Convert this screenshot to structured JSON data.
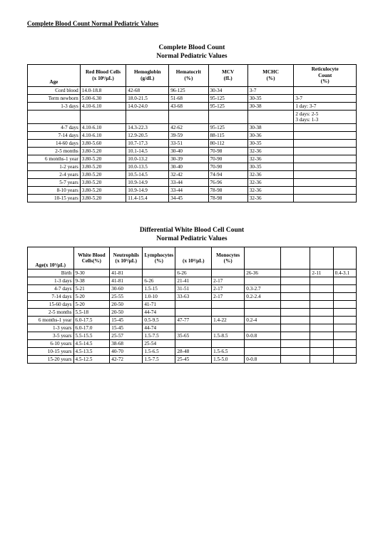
{
  "doc_title": "Complete Blood Count Normal Pediatric Values",
  "table1": {
    "title_line1": "Complete Blood Count",
    "title_line2": "Normal Pediatric Values",
    "headers": {
      "age": "Age",
      "rbc_l1": "Red Blood Cells",
      "rbc_l2": "(x 10⁶/µL)",
      "hgb_l1": "Hemoglobin",
      "hgb_l2": "(g/dL)",
      "hct_l1": "Hematocrit",
      "hct_l2": "(%)",
      "mcv_l1": "MCV",
      "mcv_l2": "(fL)",
      "mchc_l1": "MCHC",
      "mchc_l2": "(%)",
      "ret_l1": "Reticulocyte",
      "ret_l2": "Count",
      "ret_l3": "(%)"
    },
    "rows": [
      {
        "age": "Cord blood",
        "rbc": "14.0-18.8",
        "hgb": "42-68",
        "hct": "96-125",
        "mcv": "30-34",
        "mchc": "3-7",
        "ret": ""
      },
      {
        "age": "Term newborn",
        "rbc": "5.00-6.30",
        "hgb": "18.0-21.5",
        "hct": "51-68",
        "mcv": "95-125",
        "mchc": "30-35",
        "ret": "3-7"
      },
      {
        "age": "1-3 days",
        "rbc": "4.10-6.10",
        "hgb": "14.0-24.0",
        "hct": "43-68",
        "mcv": "95-125",
        "mchc": "30-38",
        "ret": "1 day: 3-7"
      },
      {
        "age": "",
        "rbc": "",
        "hgb": "",
        "hct": "",
        "mcv": "",
        "mchc": "",
        "ret": "2 days: 2-5\n3 days: 1-3"
      },
      {
        "age": "4-7 days",
        "rbc": "4.10-6.10",
        "hgb": "14.3-22.3",
        "hct": "42-62",
        "mcv": "95-125",
        "mchc": "30-38",
        "ret": ""
      },
      {
        "age": "7-14 days",
        "rbc": "4.10-6.10",
        "hgb": "12.9-20.5",
        "hct": "39-59",
        "mcv": "88-115",
        "mchc": "30-36",
        "ret": ""
      },
      {
        "age": "14-60 days",
        "rbc": "3.80-5.60",
        "hgb": "10.7-17.3",
        "hct": "33-51",
        "mcv": "80-112",
        "mchc": "30-35",
        "ret": ""
      },
      {
        "age": "2-5 months",
        "rbc": "3.80-5.20",
        "hgb": "10.1-14.5",
        "hct": "30-40",
        "mcv": "70-98",
        "mchc": "32-36",
        "ret": ""
      },
      {
        "age": "6 months-1 year",
        "rbc": "3.80-5.20",
        "hgb": "10.0-13.2",
        "hct": "30-39",
        "mcv": "70-90",
        "mchc": "32-36",
        "ret": ""
      },
      {
        "age": "1-2 years",
        "rbc": "3.80-5.20",
        "hgb": "10.0-13.5",
        "hct": "30-40",
        "mcv": "70-90",
        "mchc": "30-35",
        "ret": ""
      },
      {
        "age": "2-4 years",
        "rbc": "3.80-5.20",
        "hgb": "10.5-14.5",
        "hct": "32-42",
        "mcv": "74-94",
        "mchc": "32-36",
        "ret": ""
      },
      {
        "age": "5-7 years",
        "rbc": "3.80-5.20",
        "hgb": "10.9-14.9",
        "hct": "33-44",
        "mcv": "76-96",
        "mchc": "32-36",
        "ret": ""
      },
      {
        "age": "8-10 years",
        "rbc": "3.80-5.20",
        "hgb": "10.9-14.9",
        "hct": "33-44",
        "mcv": "78-98",
        "mchc": "32-36",
        "ret": ""
      },
      {
        "age": "10-15 years",
        "rbc": "3.80-5.20",
        "hgb": "11.4-15.4",
        "hct": "34-45",
        "mcv": "78-98",
        "mchc": "32-36",
        "ret": ""
      }
    ]
  },
  "table2": {
    "title_line1": "Differential White Blood Cell Count",
    "title_line2": "Normal Pediatric Values",
    "headers": {
      "age": "Age",
      "wbc_l1": "White Blood",
      "wbc_l2": "Cells",
      "wbc_l3": "(x 10³/µL)",
      "neut_l1": "Neutrophils",
      "neut_l2": "(%)",
      "neut_abs": "(x 10³/µL)",
      "lymph_l1": "Lymphocytes",
      "lymph_pct": "(%)",
      "lymph_abs": "(x 10³/µL)",
      "mono_l1": "Monocytes",
      "mono_pct": "(%)",
      "eo": "",
      "ba": ""
    },
    "rows": [
      {
        "age": "Birth",
        "c1": "9-30",
        "c2": "41-81",
        "c3": "",
        "c4": "6-26",
        "c5": "",
        "c6": "26-36",
        "c7": "",
        "c8": "2-11",
        "c9": "0.4-3.1"
      },
      {
        "age": "1-3 days",
        "c1": "9-38",
        "c2": "41-81",
        "c3": "6-26",
        "c4": "21-41",
        "c5": "2-17",
        "c6": "",
        "c7": "",
        "c8": "",
        "c9": ""
      },
      {
        "age": "4-7 days",
        "c1": "5-21",
        "c2": "30-60",
        "c3": "1.5-15",
        "c4": "31-51",
        "c5": "2-17",
        "c6": "0.3-2.7",
        "c7": "",
        "c8": "",
        "c9": ""
      },
      {
        "age": "7-14 days",
        "c1": "5-20",
        "c2": "25-55",
        "c3": "1.0-10",
        "c4": "33-63",
        "c5": "2-17",
        "c6": "0.2-2.4",
        "c7": "",
        "c8": "",
        "c9": ""
      },
      {
        "age": "15-60 days",
        "c1": "5-20",
        "c2": "20-50",
        "c3": "41-71",
        "c4": "",
        "c5": "",
        "c6": "",
        "c7": "",
        "c8": "",
        "c9": ""
      },
      {
        "age": "2-5 months",
        "c1": "5.5-18",
        "c2": "20-50",
        "c3": "44-74",
        "c4": "",
        "c5": "",
        "c6": "",
        "c7": "",
        "c8": "",
        "c9": ""
      },
      {
        "age": "6 months-1 year",
        "c1": "6.0-17.5",
        "c2": "15-45",
        "c3": "0.5-9.5",
        "c4": "47-77",
        "c5": "1.4-22",
        "c6": "0.2-4",
        "c7": "",
        "c8": "",
        "c9": ""
      },
      {
        "age": "1-3 years",
        "c1": "6.0-17.0",
        "c2": "15-45",
        "c3": "44-74",
        "c4": "",
        "c5": "",
        "c6": "",
        "c7": "",
        "c8": "",
        "c9": ""
      },
      {
        "age": "3-5 years",
        "c1": "5.5-15.5",
        "c2": "25-57",
        "c3": "1.5-7.5",
        "c4": "35-65",
        "c5": "1.5-8.5",
        "c6": "0-0.8",
        "c7": "",
        "c8": "",
        "c9": ""
      },
      {
        "age": "6-10 years",
        "c1": "4.5-14.5",
        "c2": "38-68",
        "c3": "25-54",
        "c4": "",
        "c5": "",
        "c6": "",
        "c7": "",
        "c8": "",
        "c9": ""
      },
      {
        "age": "10-15 years",
        "c1": "4.5-13.5",
        "c2": "40-70",
        "c3": "1.5-6.5",
        "c4": "28-48",
        "c5": "1.5-6.5",
        "c6": "",
        "c7": "",
        "c8": "",
        "c9": ""
      },
      {
        "age": "15-20 years",
        "c1": "4.5-12.5",
        "c2": "42-72",
        "c3": "1.5-7.5",
        "c4": "25-45",
        "c5": "1.5-5.0",
        "c6": "0-0.8",
        "c7": "",
        "c8": "",
        "c9": ""
      }
    ]
  }
}
